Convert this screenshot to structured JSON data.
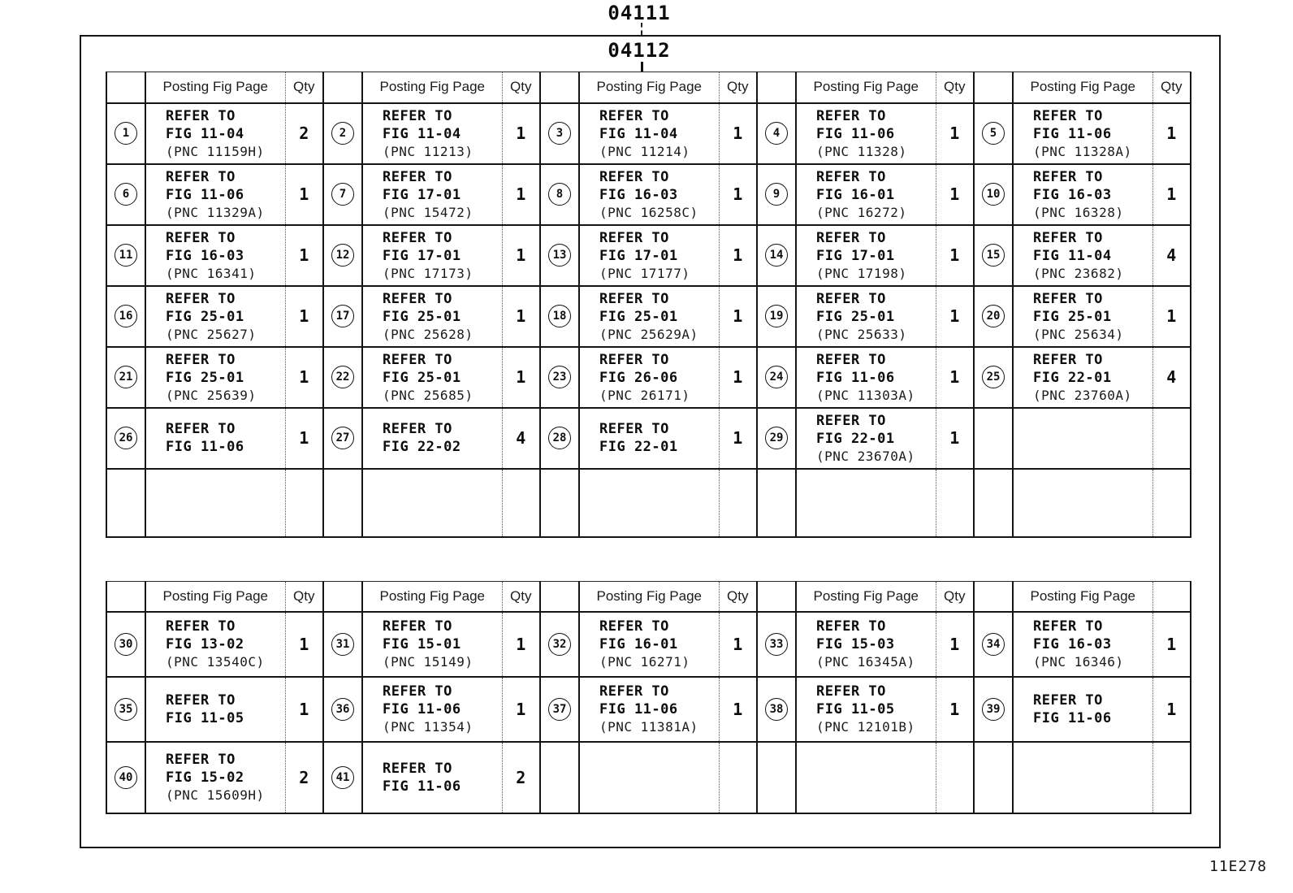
{
  "page": {
    "title_outer": "04111",
    "title_inner": "04112",
    "doc_code": "11E278"
  },
  "labels": {
    "posting_fig_page": "Posting Fig Page",
    "qty": "Qty",
    "refer_to": "REFER TO"
  },
  "table1": {
    "qty_headers": [
      "Qty",
      "Qty",
      "Qty",
      "Qty",
      "Qty"
    ],
    "rows": [
      [
        {
          "num": "1",
          "fig": "FIG 11-04",
          "pnc": "(PNC 11159H)",
          "qty": "2"
        },
        {
          "num": "2",
          "fig": "FIG 11-04",
          "pnc": "(PNC 11213)",
          "qty": "1"
        },
        {
          "num": "3",
          "fig": "FIG 11-04",
          "pnc": "(PNC 11214)",
          "qty": "1"
        },
        {
          "num": "4",
          "fig": "FIG 11-06",
          "pnc": "(PNC 11328)",
          "qty": "1"
        },
        {
          "num": "5",
          "fig": "FIG 11-06",
          "pnc": "(PNC 11328A)",
          "qty": "1"
        }
      ],
      [
        {
          "num": "6",
          "fig": "FIG 11-06",
          "pnc": "(PNC 11329A)",
          "qty": "1"
        },
        {
          "num": "7",
          "fig": "FIG 17-01",
          "pnc": "(PNC 15472)",
          "qty": "1"
        },
        {
          "num": "8",
          "fig": "FIG 16-03",
          "pnc": "(PNC 16258C)",
          "qty": "1"
        },
        {
          "num": "9",
          "fig": "FIG 16-01",
          "pnc": "(PNC 16272)",
          "qty": "1"
        },
        {
          "num": "10",
          "fig": "FIG 16-03",
          "pnc": "(PNC 16328)",
          "qty": "1"
        }
      ],
      [
        {
          "num": "11",
          "fig": "FIG 16-03",
          "pnc": "(PNC 16341)",
          "qty": "1"
        },
        {
          "num": "12",
          "fig": "FIG 17-01",
          "pnc": "(PNC 17173)",
          "qty": "1"
        },
        {
          "num": "13",
          "fig": "FIG 17-01",
          "pnc": "(PNC 17177)",
          "qty": "1"
        },
        {
          "num": "14",
          "fig": "FIG 17-01",
          "pnc": "(PNC 17198)",
          "qty": "1"
        },
        {
          "num": "15",
          "fig": "FIG 11-04",
          "pnc": "(PNC 23682)",
          "qty": "4"
        }
      ],
      [
        {
          "num": "16",
          "fig": "FIG 25-01",
          "pnc": "(PNC 25627)",
          "qty": "1"
        },
        {
          "num": "17",
          "fig": "FIG 25-01",
          "pnc": "(PNC 25628)",
          "qty": "1"
        },
        {
          "num": "18",
          "fig": "FIG 25-01",
          "pnc": "(PNC 25629A)",
          "qty": "1"
        },
        {
          "num": "19",
          "fig": "FIG 25-01",
          "pnc": "(PNC 25633)",
          "qty": "1"
        },
        {
          "num": "20",
          "fig": "FIG 25-01",
          "pnc": "(PNC 25634)",
          "qty": "1"
        }
      ],
      [
        {
          "num": "21",
          "fig": "FIG 25-01",
          "pnc": "(PNC 25639)",
          "qty": "1"
        },
        {
          "num": "22",
          "fig": "FIG 25-01",
          "pnc": "(PNC 25685)",
          "qty": "1"
        },
        {
          "num": "23",
          "fig": "FIG 26-06",
          "pnc": "(PNC 26171)",
          "qty": "1"
        },
        {
          "num": "24",
          "fig": "FIG 11-06",
          "pnc": "(PNC 11303A)",
          "qty": "1"
        },
        {
          "num": "25",
          "fig": "FIG 22-01",
          "pnc": "(PNC 23760A)",
          "qty": "4"
        }
      ],
      [
        {
          "num": "26",
          "fig": "FIG 11-06",
          "pnc": "",
          "qty": "1"
        },
        {
          "num": "27",
          "fig": "FIG 22-02",
          "pnc": "",
          "qty": "4"
        },
        {
          "num": "28",
          "fig": "FIG 22-01",
          "pnc": "",
          "qty": "1"
        },
        {
          "num": "29",
          "fig": "FIG 22-01",
          "pnc": "(PNC 23670A)",
          "qty": "1"
        },
        null
      ],
      [
        null,
        null,
        null,
        null,
        null
      ]
    ]
  },
  "table2": {
    "qty_headers": [
      "Qty",
      "Qty",
      "Qty",
      "Qty",
      ""
    ],
    "rows": [
      [
        {
          "num": "30",
          "fig": "FIG 13-02",
          "pnc": "(PNC 13540C)",
          "qty": "1"
        },
        {
          "num": "31",
          "fig": "FIG 15-01",
          "pnc": "(PNC 15149)",
          "qty": "1"
        },
        {
          "num": "32",
          "fig": "FIG 16-01",
          "pnc": "(PNC 16271)",
          "qty": "1"
        },
        {
          "num": "33",
          "fig": "FIG 15-03",
          "pnc": "(PNC 16345A)",
          "qty": "1"
        },
        {
          "num": "34",
          "fig": "FIG 16-03",
          "pnc": "(PNC 16346)",
          "qty": "1"
        }
      ],
      [
        {
          "num": "35",
          "fig": "FIG 11-05",
          "pnc": "",
          "qty": "1"
        },
        {
          "num": "36",
          "fig": "FIG 11-06",
          "pnc": "(PNC 11354)",
          "qty": "1"
        },
        {
          "num": "37",
          "fig": "FIG 11-06",
          "pnc": "(PNC 11381A)",
          "qty": "1"
        },
        {
          "num": "38",
          "fig": "FIG 11-05",
          "pnc": "(PNC 12101B)",
          "qty": "1"
        },
        {
          "num": "39",
          "fig": "FIG 11-06",
          "pnc": "",
          "qty": "1"
        }
      ],
      [
        {
          "num": "40",
          "fig": "FIG 15-02",
          "pnc": "(PNC 15609H)",
          "qty": "2"
        },
        {
          "num": "41",
          "fig": "FIG 11-06",
          "pnc": "",
          "qty": "2"
        },
        null,
        null,
        null
      ]
    ]
  }
}
